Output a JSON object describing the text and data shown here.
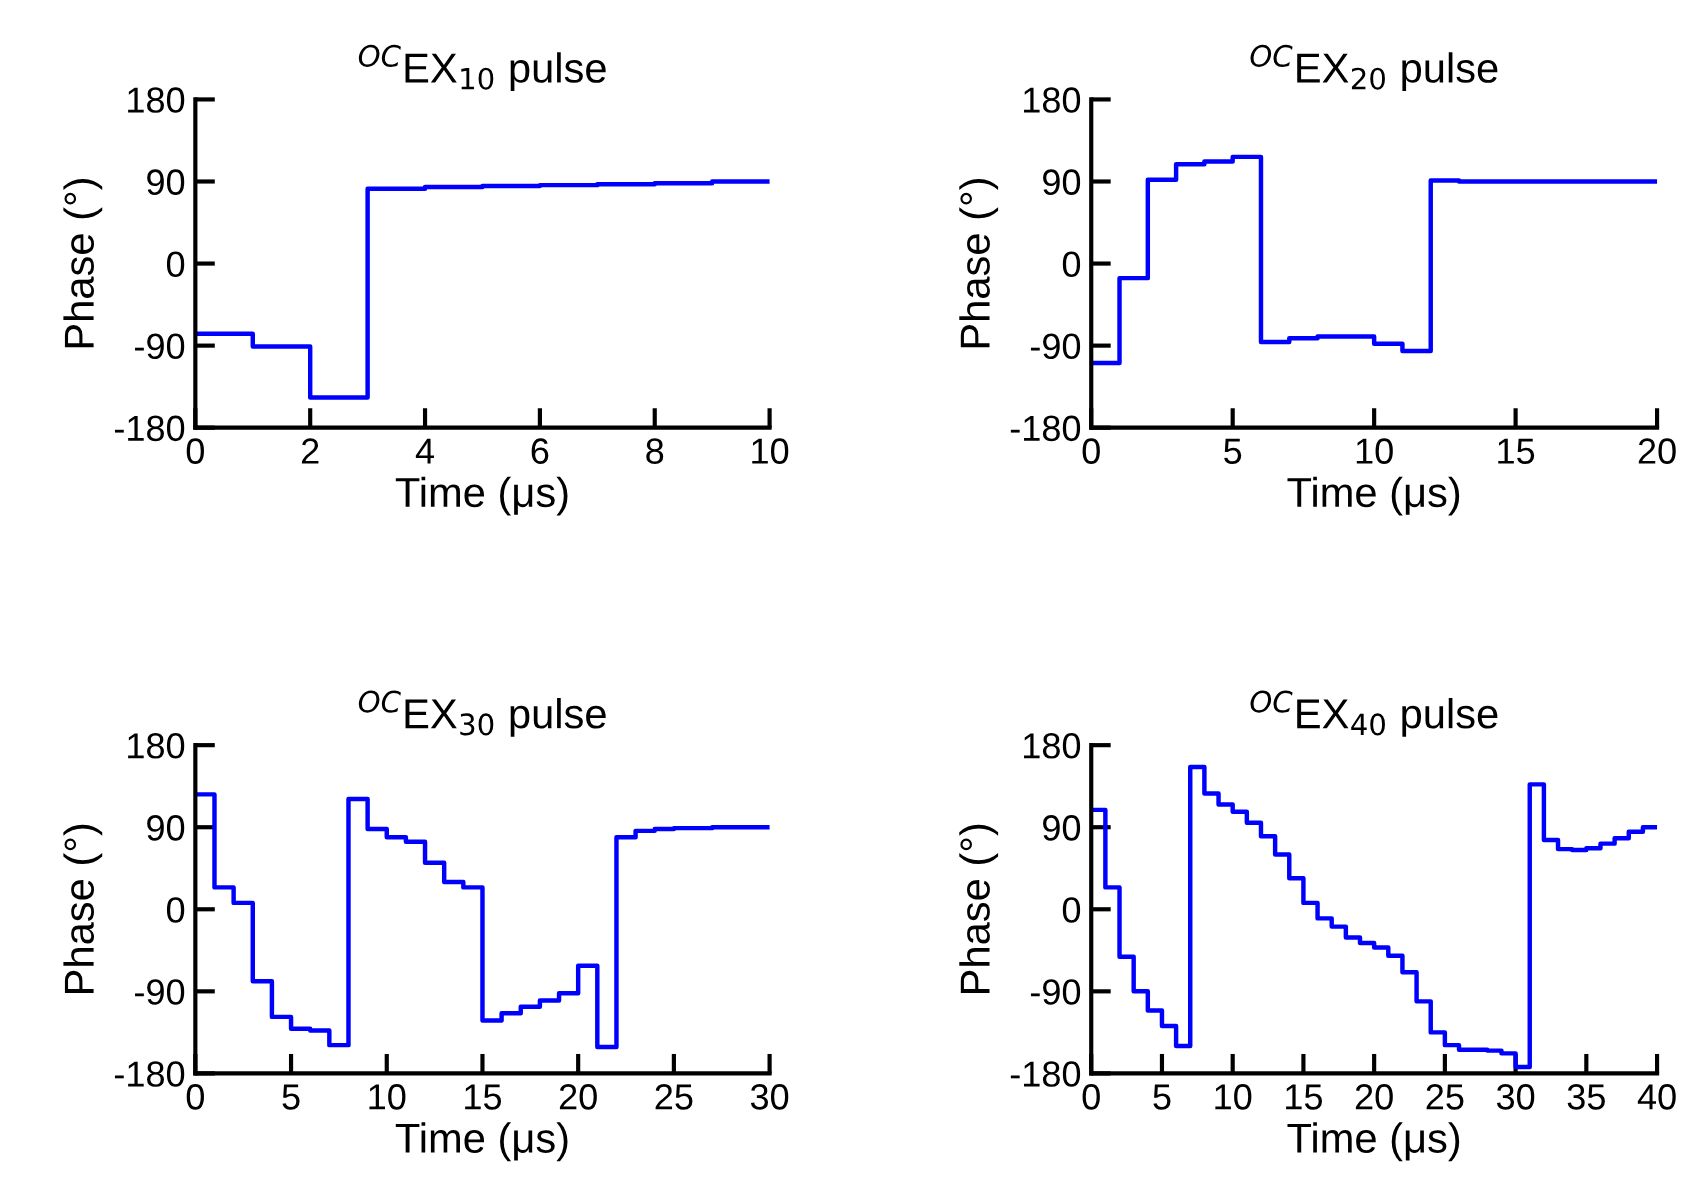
{
  "chart_data": [
    {
      "type": "step",
      "title": "$^{OC}$EX$_{10}$ pulse",
      "xlabel": "Time (μs)",
      "ylabel": "Phase (°)",
      "color": "#0000ff",
      "x": [
        0,
        1,
        2,
        3,
        4,
        5,
        6,
        7,
        8,
        9,
        10
      ],
      "values": [
        -77,
        -91,
        -147,
        82,
        84,
        85,
        86,
        87,
        88,
        90,
        90
      ],
      "xlim": [
        0,
        10
      ],
      "ylim": [
        -180,
        180
      ],
      "xticks": [
        0,
        2,
        4,
        6,
        8,
        10
      ],
      "yticks": [
        -180,
        -90,
        0,
        90,
        180
      ]
    },
    {
      "type": "step",
      "title": "$^{OC}$EX$_{20}$ pulse",
      "xlabel": "Time (μs)",
      "ylabel": "Phase (°)",
      "color": "#0000ff",
      "x": [
        0,
        1,
        2,
        3,
        4,
        5,
        6,
        7,
        8,
        9,
        10,
        11,
        12,
        13,
        14,
        15,
        16,
        17,
        18,
        19,
        20
      ],
      "values": [
        -109,
        -16,
        92,
        109,
        112,
        117,
        -86,
        -82,
        -80,
        -80,
        -88,
        -96,
        91,
        90,
        90,
        90,
        90,
        90,
        90,
        90,
        90
      ],
      "xlim": [
        0,
        20
      ],
      "ylim": [
        -180,
        180
      ],
      "xticks": [
        0,
        5,
        10,
        15,
        20
      ],
      "yticks": [
        -180,
        -90,
        0,
        90,
        180
      ]
    },
    {
      "type": "step",
      "title": "$^{OC}$EX$_{30}$ pulse",
      "xlabel": "Time (μs)",
      "ylabel": "Phase (°)",
      "color": "#0000ff",
      "x": [
        0,
        1,
        2,
        3,
        4,
        5,
        6,
        7,
        8,
        9,
        10,
        11,
        12,
        13,
        14,
        15,
        16,
        17,
        18,
        19,
        20,
        21,
        22,
        23,
        24,
        25,
        26,
        27,
        28,
        29,
        30
      ],
      "values": [
        126,
        24,
        7,
        -79,
        -118,
        -131,
        -133,
        -149,
        121,
        88,
        79,
        74,
        51,
        30,
        24,
        -122,
        -114,
        -107,
        -100,
        -92,
        -62,
        -151,
        79,
        86,
        88,
        89,
        89,
        90,
        90,
        90,
        90
      ],
      "xlim": [
        0,
        30
      ],
      "ylim": [
        -180,
        180
      ],
      "xticks": [
        0,
        5,
        10,
        15,
        20,
        25,
        30
      ],
      "yticks": [
        -180,
        -90,
        0,
        90,
        180
      ]
    },
    {
      "type": "step",
      "title": "$^{OC}$EX$_{40}$ pulse",
      "xlabel": "Time (μs)",
      "ylabel": "Phase (°)",
      "color": "#0000ff",
      "x": [
        0,
        1,
        2,
        3,
        4,
        5,
        6,
        7,
        8,
        9,
        10,
        11,
        12,
        13,
        14,
        15,
        16,
        17,
        18,
        19,
        20,
        21,
        22,
        23,
        24,
        25,
        26,
        27,
        28,
        29,
        30,
        31,
        32,
        33,
        34,
        35,
        36,
        37,
        38,
        39,
        40
      ],
      "values": [
        109,
        24,
        -52,
        -90,
        -111,
        -128,
        -150,
        156,
        127,
        115,
        107,
        95,
        80,
        60,
        34,
        7,
        -10,
        -19,
        -31,
        -37,
        -42,
        -51,
        -69,
        -101,
        -135,
        -149,
        -154,
        -154,
        -155,
        -158,
        -173,
        137,
        76,
        66,
        65,
        67,
        72,
        78,
        85,
        90,
        90
      ],
      "xlim": [
        0,
        40
      ],
      "ylim": [
        -180,
        180
      ],
      "xticks": [
        0,
        5,
        10,
        15,
        20,
        25,
        30,
        35,
        40
      ],
      "yticks": [
        -180,
        -90,
        0,
        90,
        180
      ]
    }
  ]
}
